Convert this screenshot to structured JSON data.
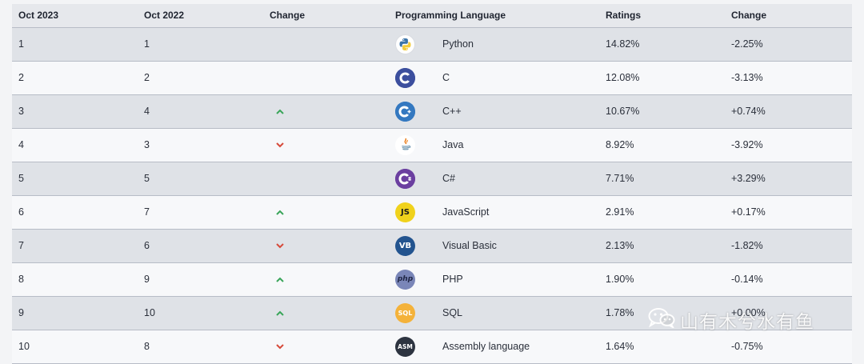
{
  "headers": {
    "rank_current": "Oct 2023",
    "rank_previous": "Oct 2022",
    "change": "Change",
    "language": "Programming Language",
    "ratings": "Ratings",
    "change_pct": "Change"
  },
  "rows": [
    {
      "rank_current": "1",
      "rank_previous": "1",
      "trend": "none",
      "logo": "python-logo",
      "language": "Python",
      "ratings": "14.82%",
      "change": "-2.25%"
    },
    {
      "rank_current": "2",
      "rank_previous": "2",
      "trend": "none",
      "logo": "c-logo",
      "language": "C",
      "ratings": "12.08%",
      "change": "-3.13%"
    },
    {
      "rank_current": "3",
      "rank_previous": "4",
      "trend": "up",
      "logo": "cpp-logo",
      "language": "C++",
      "ratings": "10.67%",
      "change": "+0.74%"
    },
    {
      "rank_current": "4",
      "rank_previous": "3",
      "trend": "down",
      "logo": "java-logo",
      "language": "Java",
      "ratings": "8.92%",
      "change": "-3.92%"
    },
    {
      "rank_current": "5",
      "rank_previous": "5",
      "trend": "none",
      "logo": "csharp-logo",
      "language": "C#",
      "ratings": "7.71%",
      "change": "+3.29%"
    },
    {
      "rank_current": "6",
      "rank_previous": "7",
      "trend": "up",
      "logo": "javascript-logo",
      "language": "JavaScript",
      "ratings": "2.91%",
      "change": "+0.17%"
    },
    {
      "rank_current": "7",
      "rank_previous": "6",
      "trend": "down",
      "logo": "visual-basic-logo",
      "language": "Visual Basic",
      "ratings": "2.13%",
      "change": "-1.82%"
    },
    {
      "rank_current": "8",
      "rank_previous": "9",
      "trend": "up",
      "logo": "php-logo",
      "language": "PHP",
      "ratings": "1.90%",
      "change": "-0.14%"
    },
    {
      "rank_current": "9",
      "rank_previous": "10",
      "trend": "up",
      "logo": "sql-logo",
      "language": "SQL",
      "ratings": "1.78%",
      "change": "+0.00%"
    },
    {
      "rank_current": "10",
      "rank_previous": "8",
      "trend": "down",
      "logo": "assembly-logo",
      "language": "Assembly language",
      "ratings": "1.64%",
      "change": "-0.75%"
    }
  ],
  "logo_text": {
    "javascript": "JS",
    "visual_basic": "VB",
    "php": "php",
    "sql": "SQL",
    "assembly": "ASM"
  },
  "colors": {
    "up_arrow": "#3aa55a",
    "down_arrow": "#d64a3a",
    "header_bg": "#e6e8ec",
    "row_odd_bg": "#dfe2e7",
    "row_even_bg": "#f7f8fa"
  },
  "watermark": {
    "text": "山有木兮水有鱼"
  }
}
